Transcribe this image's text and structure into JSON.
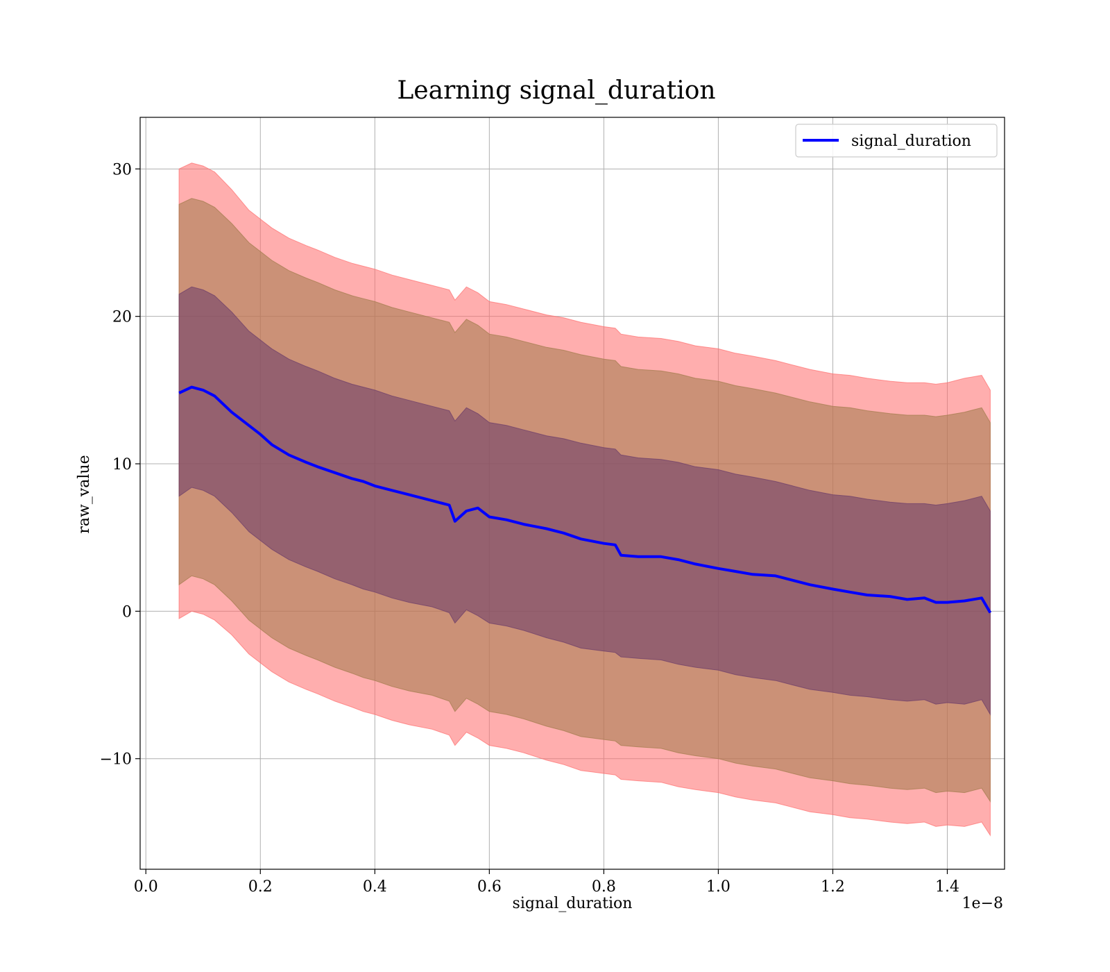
{
  "chart_data": {
    "type": "line",
    "title": "Learning signal_duration",
    "xlabel": "signal_duration",
    "ylabel": "raw_value",
    "x_offset_text": "1e−8",
    "xlim": [
      -0.01,
      1.5
    ],
    "ylim": [
      -17.5,
      33.5
    ],
    "x_ticks": [
      0.0,
      0.2,
      0.4,
      0.6,
      0.8,
      1.0,
      1.2,
      1.4
    ],
    "x_tick_labels": [
      "0.0",
      "0.2",
      "0.4",
      "0.6",
      "0.8",
      "1.0",
      "1.2",
      "1.4"
    ],
    "y_ticks": [
      -10,
      0,
      10,
      20,
      30
    ],
    "y_tick_labels": [
      "−10",
      "0",
      "10",
      "20",
      "30"
    ],
    "grid": true,
    "legend": {
      "placement": "top-right",
      "entries": [
        "signal_duration"
      ]
    },
    "colors": {
      "mean_line": "#0000ff",
      "band_outer": "#ff6b6b",
      "band_middle": "#a07a4a",
      "band_inner": "#6a3a6a"
    },
    "x": [
      0.058,
      0.08,
      0.1,
      0.12,
      0.15,
      0.18,
      0.2,
      0.22,
      0.25,
      0.28,
      0.3,
      0.33,
      0.36,
      0.38,
      0.4,
      0.43,
      0.46,
      0.5,
      0.53,
      0.54,
      0.56,
      0.58,
      0.6,
      0.63,
      0.66,
      0.7,
      0.73,
      0.76,
      0.8,
      0.82,
      0.83,
      0.86,
      0.9,
      0.93,
      0.96,
      1.0,
      1.03,
      1.06,
      1.1,
      1.13,
      1.16,
      1.2,
      1.23,
      1.26,
      1.3,
      1.33,
      1.36,
      1.38,
      1.4,
      1.43,
      1.46,
      1.475
    ],
    "series": [
      {
        "name": "signal_duration",
        "values": [
          14.8,
          15.2,
          15.0,
          14.6,
          13.5,
          12.6,
          12.0,
          11.3,
          10.6,
          10.1,
          9.8,
          9.4,
          9.0,
          8.8,
          8.5,
          8.2,
          7.9,
          7.5,
          7.2,
          6.1,
          6.8,
          7.0,
          6.4,
          6.2,
          5.9,
          5.6,
          5.3,
          4.9,
          4.6,
          4.5,
          3.8,
          3.7,
          3.7,
          3.5,
          3.2,
          2.9,
          2.7,
          2.5,
          2.4,
          2.1,
          1.8,
          1.5,
          1.3,
          1.1,
          1.0,
          0.8,
          0.9,
          0.6,
          0.6,
          0.7,
          0.9,
          -0.1
        ]
      }
    ],
    "bands": [
      {
        "level": "outer",
        "upper": [
          30.0,
          30.4,
          30.2,
          29.8,
          28.6,
          27.2,
          26.6,
          26.0,
          25.3,
          24.8,
          24.5,
          24.0,
          23.6,
          23.4,
          23.2,
          22.8,
          22.5,
          22.1,
          21.8,
          21.1,
          22.0,
          21.6,
          21.0,
          20.8,
          20.5,
          20.1,
          19.9,
          19.6,
          19.3,
          19.2,
          18.8,
          18.6,
          18.5,
          18.3,
          18.0,
          17.8,
          17.5,
          17.3,
          17.0,
          16.7,
          16.4,
          16.1,
          16.0,
          15.8,
          15.6,
          15.5,
          15.5,
          15.4,
          15.5,
          15.8,
          16.0,
          15.0
        ],
        "lower": [
          -0.5,
          0.0,
          -0.2,
          -0.6,
          -1.6,
          -2.9,
          -3.5,
          -4.1,
          -4.8,
          -5.3,
          -5.6,
          -6.1,
          -6.5,
          -6.8,
          -7.0,
          -7.4,
          -7.7,
          -8.0,
          -8.4,
          -9.1,
          -8.2,
          -8.6,
          -9.1,
          -9.3,
          -9.6,
          -10.1,
          -10.4,
          -10.8,
          -11.0,
          -11.1,
          -11.4,
          -11.5,
          -11.6,
          -11.9,
          -12.1,
          -12.3,
          -12.6,
          -12.8,
          -13.0,
          -13.3,
          -13.6,
          -13.8,
          -14.0,
          -14.1,
          -14.3,
          -14.4,
          -14.3,
          -14.6,
          -14.5,
          -14.6,
          -14.3,
          -15.2
        ]
      },
      {
        "level": "middle",
        "upper": [
          27.6,
          28.0,
          27.8,
          27.4,
          26.3,
          25.0,
          24.4,
          23.8,
          23.1,
          22.6,
          22.3,
          21.8,
          21.4,
          21.2,
          21.0,
          20.6,
          20.3,
          19.9,
          19.6,
          18.9,
          19.8,
          19.4,
          18.8,
          18.6,
          18.3,
          17.9,
          17.7,
          17.4,
          17.1,
          17.0,
          16.6,
          16.4,
          16.3,
          16.1,
          15.8,
          15.6,
          15.3,
          15.1,
          14.8,
          14.5,
          14.2,
          13.9,
          13.8,
          13.6,
          13.4,
          13.3,
          13.3,
          13.2,
          13.3,
          13.5,
          13.8,
          12.8
        ],
        "lower": [
          1.8,
          2.4,
          2.2,
          1.8,
          0.7,
          -0.6,
          -1.2,
          -1.8,
          -2.5,
          -3.0,
          -3.3,
          -3.8,
          -4.2,
          -4.5,
          -4.7,
          -5.1,
          -5.4,
          -5.7,
          -6.1,
          -6.8,
          -5.9,
          -6.3,
          -6.8,
          -7.0,
          -7.3,
          -7.8,
          -8.1,
          -8.5,
          -8.7,
          -8.8,
          -9.1,
          -9.2,
          -9.3,
          -9.6,
          -9.8,
          -10.0,
          -10.3,
          -10.5,
          -10.7,
          -11.0,
          -11.3,
          -11.5,
          -11.7,
          -11.8,
          -12.0,
          -12.1,
          -12.0,
          -12.3,
          -12.2,
          -12.3,
          -12.0,
          -12.9
        ]
      },
      {
        "level": "inner",
        "upper": [
          21.5,
          22.0,
          21.8,
          21.4,
          20.3,
          19.0,
          18.4,
          17.8,
          17.1,
          16.6,
          16.3,
          15.8,
          15.4,
          15.2,
          15.0,
          14.6,
          14.3,
          13.9,
          13.6,
          12.9,
          13.8,
          13.4,
          12.8,
          12.6,
          12.3,
          11.9,
          11.7,
          11.4,
          11.1,
          11.0,
          10.6,
          10.4,
          10.3,
          10.1,
          9.8,
          9.6,
          9.3,
          9.1,
          8.8,
          8.5,
          8.2,
          7.9,
          7.8,
          7.6,
          7.4,
          7.3,
          7.3,
          7.2,
          7.3,
          7.5,
          7.8,
          6.8
        ],
        "lower": [
          7.8,
          8.4,
          8.2,
          7.8,
          6.7,
          5.4,
          4.8,
          4.2,
          3.5,
          3.0,
          2.7,
          2.2,
          1.8,
          1.5,
          1.3,
          0.9,
          0.6,
          0.3,
          -0.1,
          -0.8,
          0.1,
          -0.3,
          -0.8,
          -1.0,
          -1.3,
          -1.8,
          -2.1,
          -2.5,
          -2.7,
          -2.8,
          -3.1,
          -3.2,
          -3.3,
          -3.6,
          -3.8,
          -4.0,
          -4.3,
          -4.5,
          -4.7,
          -5.0,
          -5.3,
          -5.5,
          -5.7,
          -5.8,
          -6.0,
          -6.1,
          -6.0,
          -6.3,
          -6.2,
          -6.3,
          -6.0,
          -7.0
        ]
      }
    ]
  }
}
